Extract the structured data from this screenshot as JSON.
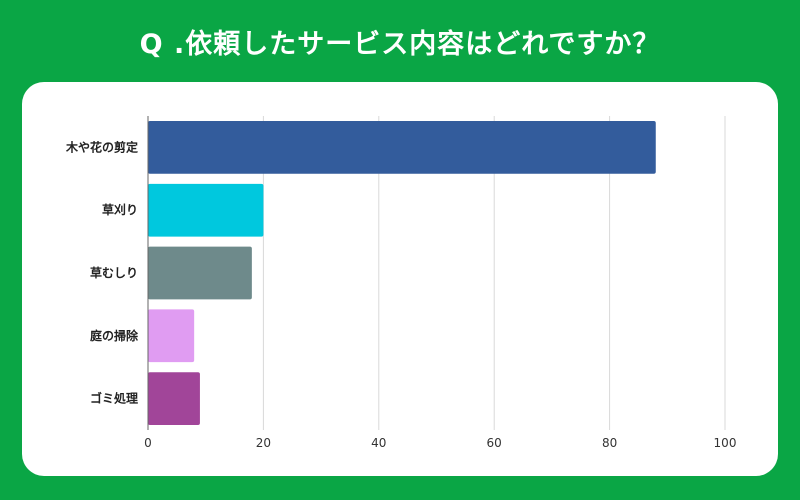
{
  "question": "Q .依頼したサービス内容はどれですか？",
  "colors": {
    "background": "#0aa645",
    "card": "#ffffff",
    "grid": "#d9d9d9",
    "axis": "#666666"
  },
  "chart_data": {
    "type": "bar",
    "orientation": "horizontal",
    "title": "Q .依頼したサービス内容はどれですか？",
    "xlabel": "",
    "ylabel": "",
    "categories": [
      "木や花の剪定",
      "草刈り",
      "草むしり",
      "庭の掃除",
      "ゴミ処理"
    ],
    "values": [
      88,
      20,
      18,
      8,
      9
    ],
    "bar_colors": [
      "#335c9c",
      "#00c8de",
      "#6e8a8b",
      "#e09cf2",
      "#a14599"
    ],
    "xlim": [
      0,
      100
    ],
    "x_ticks": [
      0,
      20,
      40,
      60,
      80,
      100
    ],
    "grid": true,
    "legend": "none"
  }
}
